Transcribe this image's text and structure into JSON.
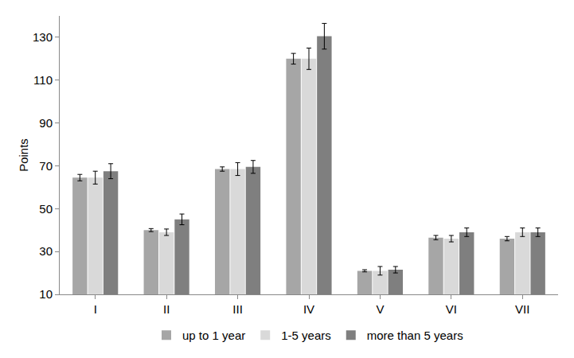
{
  "chart_data": {
    "type": "bar",
    "y_label": "Points",
    "categories": [
      "I",
      "II",
      "III",
      "IV",
      "V",
      "VI",
      "VII"
    ],
    "series": [
      {
        "name": "up to 1 year",
        "color": "#a6a6a6",
        "values": [
          64.5,
          40,
          68.5,
          120,
          21,
          36.5,
          36
        ],
        "errors": [
          1.5,
          0.7,
          1,
          2.5,
          0.5,
          1,
          1
        ]
      },
      {
        "name": "1-5 years",
        "color": "#d9d9d9",
        "values": [
          64.5,
          39,
          68.5,
          120,
          21,
          36,
          39
        ],
        "errors": [
          3,
          1.5,
          3,
          5,
          2,
          1.5,
          2
        ]
      },
      {
        "name": "more than 5 years",
        "color": "#7f7f7f",
        "values": [
          67.5,
          45,
          69.5,
          130.5,
          21.5,
          39,
          39
        ],
        "errors": [
          3.5,
          2.5,
          3,
          6,
          1.5,
          2,
          2
        ]
      }
    ],
    "ylim": [
      10,
      140
    ],
    "yticks": [
      10,
      30,
      50,
      70,
      90,
      110,
      130
    ],
    "grid": false,
    "legend": "bottom"
  }
}
